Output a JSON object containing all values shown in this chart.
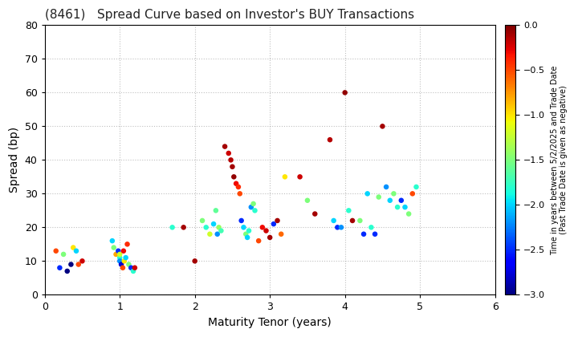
{
  "title": "(8461)   Spread Curve based on Investor's BUY Transactions",
  "xlabel": "Maturity Tenor (years)",
  "ylabel": "Spread (bp)",
  "xlim": [
    0,
    6
  ],
  "ylim": [
    0,
    80
  ],
  "xticks": [
    0,
    1,
    2,
    3,
    4,
    5,
    6
  ],
  "yticks": [
    0,
    10,
    20,
    30,
    40,
    50,
    60,
    70,
    80
  ],
  "colorbar_label": "Time in years between 5/2/2025 and Trade Date\n(Past Trade Date is given as negative)",
  "cmap_vmin": -3.0,
  "cmap_vmax": 0.0,
  "cmap_ticks": [
    0.0,
    -0.5,
    -1.0,
    -1.5,
    -2.0,
    -2.5,
    -3.0
  ],
  "points": [
    [
      0.15,
      13,
      -0.5
    ],
    [
      0.2,
      8,
      -2.5
    ],
    [
      0.25,
      12,
      -1.5
    ],
    [
      0.3,
      7,
      -3.0
    ],
    [
      0.35,
      9,
      -3.0
    ],
    [
      0.38,
      14,
      -1.0
    ],
    [
      0.42,
      13,
      -2.0
    ],
    [
      0.45,
      9,
      -0.5
    ],
    [
      0.5,
      10,
      -0.2
    ],
    [
      0.9,
      16,
      -2.0
    ],
    [
      0.92,
      14,
      -1.5
    ],
    [
      0.95,
      12,
      -0.8
    ],
    [
      0.98,
      13,
      -2.5
    ],
    [
      1.0,
      11,
      -1.8
    ],
    [
      1.0,
      10,
      -2.2
    ],
    [
      1.0,
      12,
      -1.2
    ],
    [
      1.02,
      9,
      -2.8
    ],
    [
      1.04,
      8,
      -0.5
    ],
    [
      1.05,
      13,
      -0.3
    ],
    [
      1.06,
      10,
      -1.0
    ],
    [
      1.08,
      11,
      -2.0
    ],
    [
      1.1,
      15,
      -0.4
    ],
    [
      1.12,
      9,
      -1.5
    ],
    [
      1.15,
      8,
      -2.5
    ],
    [
      1.18,
      7,
      -1.8
    ],
    [
      1.2,
      8,
      -0.2
    ],
    [
      1.7,
      20,
      -1.8
    ],
    [
      1.85,
      20,
      -0.1
    ],
    [
      2.0,
      10,
      -0.1
    ],
    [
      2.1,
      22,
      -1.5
    ],
    [
      2.15,
      20,
      -1.8
    ],
    [
      2.2,
      18,
      -1.2
    ],
    [
      2.25,
      21,
      -2.0
    ],
    [
      2.28,
      25,
      -1.6
    ],
    [
      2.3,
      18,
      -2.2
    ],
    [
      2.32,
      20,
      -1.4
    ],
    [
      2.35,
      19,
      -1.7
    ],
    [
      2.4,
      44,
      -0.1
    ],
    [
      2.45,
      42,
      -0.2
    ],
    [
      2.48,
      40,
      -0.15
    ],
    [
      2.5,
      38,
      -0.1
    ],
    [
      2.52,
      35,
      -0.05
    ],
    [
      2.55,
      33,
      -0.3
    ],
    [
      2.58,
      32,
      -0.4
    ],
    [
      2.6,
      30,
      -0.5
    ],
    [
      2.62,
      22,
      -2.5
    ],
    [
      2.65,
      20,
      -2.0
    ],
    [
      2.68,
      18,
      -1.5
    ],
    [
      2.7,
      17,
      -2.0
    ],
    [
      2.72,
      19,
      -1.8
    ],
    [
      2.75,
      26,
      -2.2
    ],
    [
      2.78,
      27,
      -1.5
    ],
    [
      2.8,
      25,
      -1.8
    ],
    [
      2.85,
      16,
      -0.5
    ],
    [
      2.9,
      20,
      -0.3
    ],
    [
      2.95,
      19,
      -0.2
    ],
    [
      3.0,
      17,
      -0.1
    ],
    [
      3.05,
      21,
      -2.5
    ],
    [
      3.1,
      22,
      -0.1
    ],
    [
      3.15,
      18,
      -0.6
    ],
    [
      3.2,
      35,
      -1.0
    ],
    [
      3.4,
      35,
      -0.2
    ],
    [
      3.5,
      28,
      -1.5
    ],
    [
      3.6,
      24,
      -0.1
    ],
    [
      3.8,
      46,
      -0.15
    ],
    [
      3.85,
      22,
      -2.0
    ],
    [
      3.9,
      20,
      -2.5
    ],
    [
      3.95,
      20,
      -2.2
    ],
    [
      4.0,
      60,
      -0.05
    ],
    [
      4.05,
      25,
      -1.8
    ],
    [
      4.1,
      22,
      -0.1
    ],
    [
      4.2,
      22,
      -1.5
    ],
    [
      4.25,
      18,
      -2.5
    ],
    [
      4.3,
      30,
      -2.0
    ],
    [
      4.35,
      20,
      -1.8
    ],
    [
      4.4,
      18,
      -2.5
    ],
    [
      4.45,
      29,
      -1.5
    ],
    [
      4.5,
      50,
      -0.1
    ],
    [
      4.55,
      32,
      -2.2
    ],
    [
      4.6,
      28,
      -2.0
    ],
    [
      4.65,
      30,
      -1.5
    ],
    [
      4.7,
      26,
      -1.8
    ],
    [
      4.75,
      28,
      -2.5
    ],
    [
      4.8,
      26,
      -2.0
    ],
    [
      4.85,
      24,
      -1.5
    ],
    [
      4.9,
      30,
      -0.5
    ],
    [
      4.95,
      32,
      -1.8
    ]
  ]
}
